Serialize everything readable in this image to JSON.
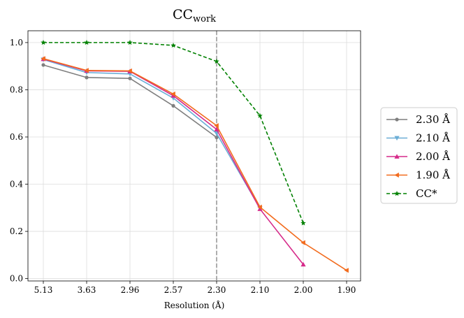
{
  "chart_data": {
    "type": "line",
    "title": "CC",
    "title_subscript": "work",
    "xlabel": "Resolution (Å)",
    "ylabel": "",
    "categories": [
      "5.13",
      "3.63",
      "2.96",
      "2.57",
      "2.30",
      "2.10",
      "2.00",
      "1.90"
    ],
    "ylim": [
      -0.01,
      1.05
    ],
    "yticks": [
      0.0,
      0.2,
      0.4,
      0.6,
      0.8,
      1.0
    ],
    "ytick_labels": [
      "0.0",
      "0.2",
      "0.4",
      "0.6",
      "0.8",
      "1.0"
    ],
    "grid": true,
    "legend_position": "right, outside plot",
    "vertical_line": {
      "at_category": "2.30",
      "style": "dashed",
      "color": "#999999"
    },
    "series": [
      {
        "name": "2.30 Å",
        "color": "#7f7f7f",
        "marker": "circle",
        "dash": "solid",
        "values": [
          0.905,
          0.852,
          0.848,
          0.732,
          0.598,
          null,
          null,
          null
        ]
      },
      {
        "name": "2.10 Å",
        "color": "#6baed6",
        "marker": "triangle-down",
        "dash": "solid",
        "values": [
          0.928,
          0.873,
          0.867,
          0.765,
          0.615,
          0.298,
          null,
          null
        ]
      },
      {
        "name": "2.00 Å",
        "color": "#d62a8a",
        "marker": "triangle-up",
        "dash": "solid",
        "values": [
          0.93,
          0.88,
          0.878,
          0.775,
          0.632,
          0.295,
          0.06,
          null
        ]
      },
      {
        "name": "1.90 Å",
        "color": "#f26b1d",
        "marker": "triangle-left",
        "dash": "solid",
        "values": [
          0.932,
          0.882,
          0.88,
          0.782,
          0.648,
          0.303,
          0.152,
          0.035
        ]
      },
      {
        "name": "CC*",
        "color": "#008000",
        "marker": "star",
        "dash": "dashed",
        "values": [
          1.0,
          1.0,
          1.0,
          0.988,
          0.92,
          0.69,
          0.235,
          null
        ]
      }
    ]
  }
}
